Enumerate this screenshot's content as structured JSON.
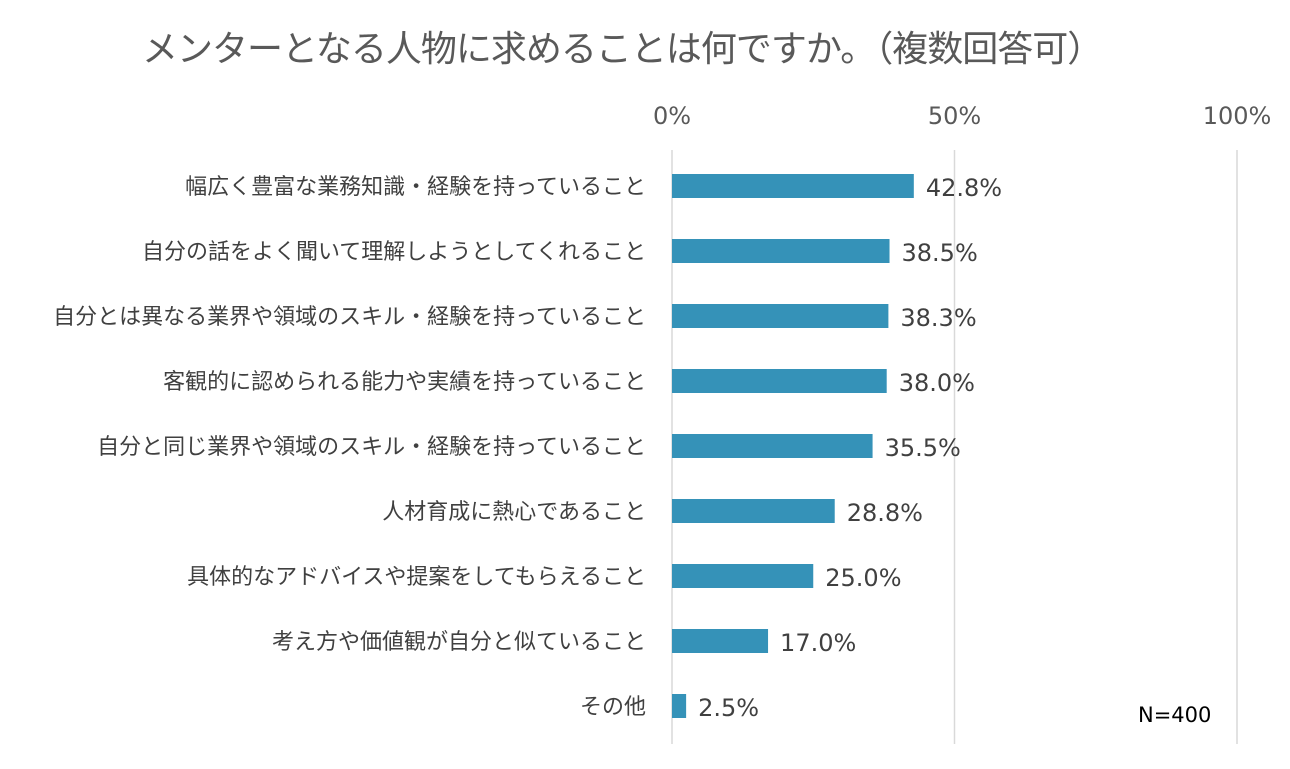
{
  "chart_data": {
    "type": "bar",
    "orientation": "horizontal",
    "title": "メンターとなる人物に求めることは何ですか。（複数回答可）",
    "categories": [
      "幅広く豊富な業務知識・経験を持っていること",
      "自分の話をよく聞いて理解しようとしてくれること",
      "自分とは異なる業界や領域のスキル・経験を持っていること",
      "客観的に認められる能力や実績を持っていること",
      "自分と同じ業界や領域のスキル・経験を持っていること",
      "人材育成に熱心であること",
      "具体的なアドバイスや提案をしてもらえること",
      "考え方や価値観が自分と似ていること",
      "その他"
    ],
    "values": [
      42.8,
      38.5,
      38.3,
      38.0,
      35.5,
      28.8,
      25.0,
      17.0,
      2.5
    ],
    "value_labels": [
      "42.8%",
      "38.5%",
      "38.3%",
      "38.0%",
      "35.5%",
      "28.8%",
      "25.0%",
      "17.0%",
      "2.5%"
    ],
    "xlim": [
      0,
      100
    ],
    "xticks": [
      "0%",
      "50%",
      "100%"
    ],
    "xaxis_position": "top",
    "grid": true,
    "bar_color": "#3592b8",
    "annotation": "N=400"
  }
}
